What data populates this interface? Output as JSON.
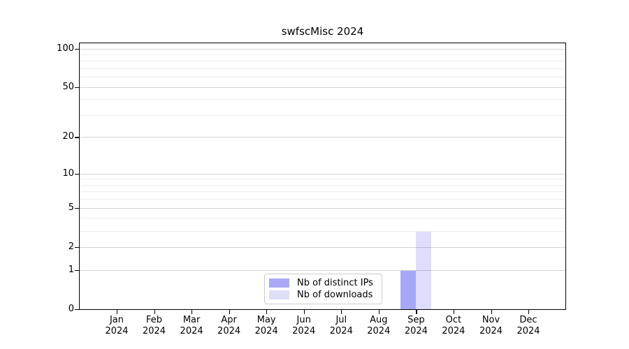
{
  "chart_data": {
    "type": "bar",
    "title": "swfscMisc 2024",
    "xlabel": "",
    "ylabel": "",
    "categories": [
      "Jan",
      "Feb",
      "Mar",
      "Apr",
      "May",
      "Jun",
      "Jul",
      "Aug",
      "Sep",
      "Oct",
      "Nov",
      "Dec"
    ],
    "category_year": "2024",
    "series": [
      {
        "name": "Nb of distinct IPs",
        "color": "#a9a9f7",
        "fill": "rgba(45,45,235,0.42)",
        "values": [
          0,
          0,
          0,
          0,
          0,
          0,
          0,
          0,
          1,
          0,
          0,
          0
        ]
      },
      {
        "name": "Nb of downloads",
        "color": "#dedef8",
        "fill": "rgba(45,45,235,0.16)",
        "values": [
          0,
          0,
          0,
          0,
          0,
          0,
          0,
          0,
          3,
          0,
          0,
          0
        ]
      }
    ],
    "yscale": "log1p",
    "yticks": [
      0,
      1,
      2,
      5,
      10,
      20,
      50,
      100
    ],
    "minor_gridlines": [
      3,
      4,
      6,
      7,
      8,
      9,
      30,
      40,
      60,
      70,
      80,
      90
    ],
    "ylim": [
      0,
      112
    ],
    "grid": "horizontal",
    "legend_position": "lower-center"
  },
  "colors": {
    "background": "#ffffff",
    "axis": "#000000",
    "text": "#000000",
    "grid_major": "#d4d4d4",
    "grid_minor": "#eeeeee",
    "legend_border": "#cccccc",
    "bar_distinct_ips": "#a9a9f7",
    "bar_downloads": "#dedef8"
  }
}
